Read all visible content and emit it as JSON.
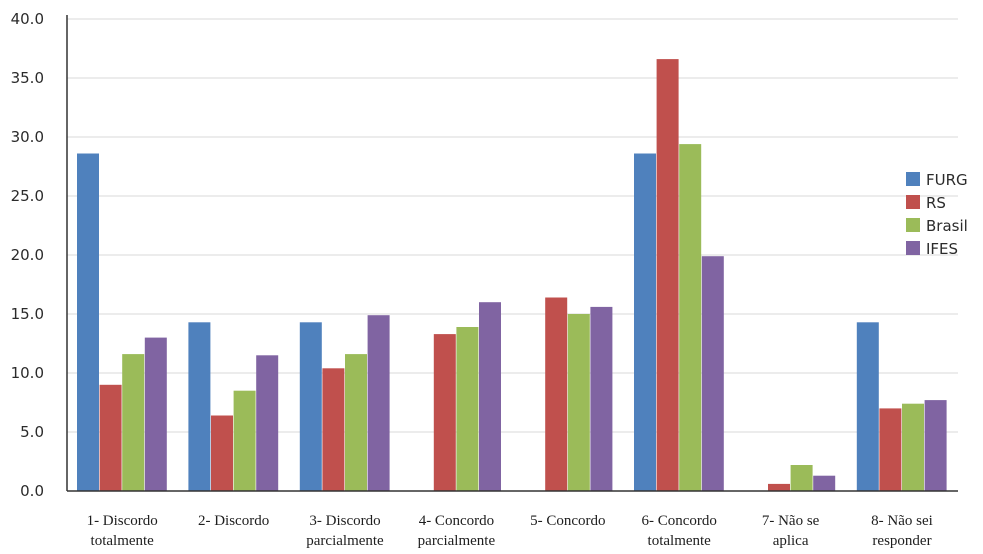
{
  "chart_data": {
    "type": "bar",
    "categories": [
      [
        "1- Discordo",
        "totalmente"
      ],
      [
        "2- Discordo"
      ],
      [
        "3- Discordo",
        "parcialmente"
      ],
      [
        "4- Concordo",
        "parcialmente"
      ],
      [
        "5- Concordo"
      ],
      [
        "6- Concordo",
        "totalmente"
      ],
      [
        "7- Não se",
        "aplica"
      ],
      [
        "8- Não sei",
        "responder"
      ]
    ],
    "series": [
      {
        "name": "FURG",
        "color": "#4f81bd",
        "values": [
          28.6,
          14.3,
          14.3,
          0,
          0,
          28.6,
          0,
          14.3
        ]
      },
      {
        "name": "RS",
        "color": "#c0504d",
        "values": [
          9.0,
          6.4,
          10.4,
          13.3,
          16.4,
          36.6,
          0.6,
          7.0
        ]
      },
      {
        "name": "Brasil",
        "color": "#9bbb59",
        "values": [
          11.6,
          8.5,
          11.6,
          13.9,
          15.0,
          29.4,
          2.2,
          7.4
        ]
      },
      {
        "name": "IFES",
        "color": "#8064a2",
        "values": [
          13.0,
          11.5,
          14.9,
          16.0,
          15.6,
          19.9,
          1.3,
          7.7
        ]
      }
    ],
    "y_ticks": [
      "0.0",
      "5.0",
      "10.0",
      "15.0",
      "20.0",
      "25.0",
      "30.0",
      "35.0",
      "40.0"
    ],
    "ylim": [
      0,
      40
    ],
    "grid": true,
    "legend_position": "right"
  }
}
